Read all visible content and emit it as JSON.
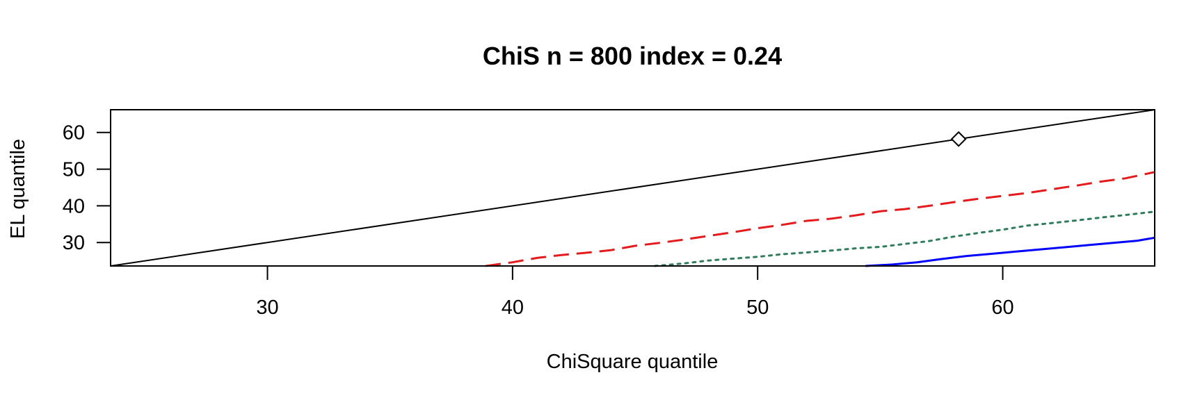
{
  "chart_data": {
    "type": "line",
    "title": "ChiS n = 800 index = 0.24",
    "xlabel": "ChiSquare quantile",
    "ylabel": "EL quantile",
    "xlim": [
      23.6,
      66.2
    ],
    "ylim": [
      23.6,
      66.2
    ],
    "xticks": [
      30,
      40,
      50,
      60
    ],
    "yticks": [
      30,
      40,
      50,
      60
    ],
    "grid": false,
    "legend": "none",
    "reference_line": {
      "from": [
        23.6,
        23.6
      ],
      "to": [
        66.2,
        66.2
      ],
      "color": "#000000",
      "style": "solid"
    },
    "marker_point": {
      "x": 58.2,
      "y": 58.2,
      "shape": "diamond"
    },
    "series": [
      {
        "color": "#e41a1c",
        "style": "dashed",
        "points": [
          [
            38.9,
            23.6
          ],
          [
            40.0,
            24.6
          ],
          [
            41.0,
            25.8
          ],
          [
            42.0,
            26.6
          ],
          [
            43.0,
            27.2
          ],
          [
            44.0,
            27.9
          ],
          [
            45.0,
            29.1
          ],
          [
            46.0,
            29.9
          ],
          [
            47.0,
            30.8
          ],
          [
            48.0,
            31.8
          ],
          [
            49.0,
            32.8
          ],
          [
            50.0,
            33.9
          ],
          [
            51.0,
            34.8
          ],
          [
            52.0,
            35.9
          ],
          [
            53.0,
            36.5
          ],
          [
            54.0,
            37.4
          ],
          [
            55.0,
            38.5
          ],
          [
            56.0,
            39.1
          ],
          [
            57.0,
            40.0
          ],
          [
            58.0,
            41.0
          ],
          [
            59.0,
            41.9
          ],
          [
            60.0,
            42.7
          ],
          [
            61.0,
            43.5
          ],
          [
            62.0,
            44.5
          ],
          [
            63.0,
            45.5
          ],
          [
            64.0,
            46.6
          ],
          [
            65.0,
            47.5
          ],
          [
            66.2,
            49.2
          ]
        ]
      },
      {
        "color": "#2e7d5b",
        "style": "dotted",
        "points": [
          [
            45.8,
            23.6
          ],
          [
            47.0,
            24.3
          ],
          [
            48.0,
            25.1
          ],
          [
            49.0,
            25.6
          ],
          [
            50.0,
            26.1
          ],
          [
            51.0,
            26.8
          ],
          [
            52.0,
            27.3
          ],
          [
            53.0,
            27.8
          ],
          [
            54.0,
            28.4
          ],
          [
            55.0,
            28.8
          ],
          [
            56.0,
            29.6
          ],
          [
            57.0,
            30.4
          ],
          [
            58.0,
            31.6
          ],
          [
            59.0,
            32.6
          ],
          [
            60.0,
            33.5
          ],
          [
            61.0,
            34.6
          ],
          [
            62.0,
            35.3
          ],
          [
            63.0,
            36.0
          ],
          [
            64.0,
            36.8
          ],
          [
            65.0,
            37.5
          ],
          [
            66.2,
            38.4
          ]
        ]
      },
      {
        "color": "#0000ff",
        "style": "solid",
        "points": [
          [
            54.4,
            23.6
          ],
          [
            55.5,
            24.0
          ],
          [
            56.5,
            24.6
          ],
          [
            57.5,
            25.5
          ],
          [
            58.5,
            26.3
          ],
          [
            59.5,
            26.9
          ],
          [
            60.5,
            27.5
          ],
          [
            61.5,
            28.1
          ],
          [
            62.5,
            28.7
          ],
          [
            63.5,
            29.3
          ],
          [
            64.5,
            29.9
          ],
          [
            65.5,
            30.5
          ],
          [
            66.2,
            31.3
          ]
        ]
      }
    ]
  }
}
